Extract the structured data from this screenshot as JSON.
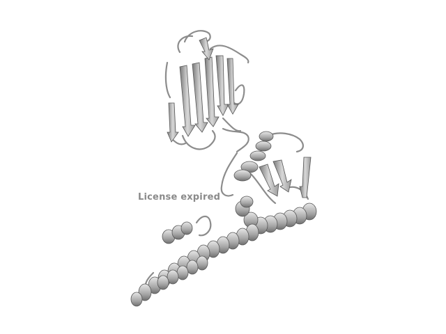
{
  "viewer": {
    "watermark_text": "License expired"
  },
  "molecule": {
    "representation": "cartoon",
    "colors": {
      "background": "#ffffff",
      "cartoon_light": "#e6e6e6",
      "cartoon_mid": "#b4b4b4",
      "cartoon_dark": "#6e6e6e",
      "outline": "#4a4a4a"
    }
  }
}
